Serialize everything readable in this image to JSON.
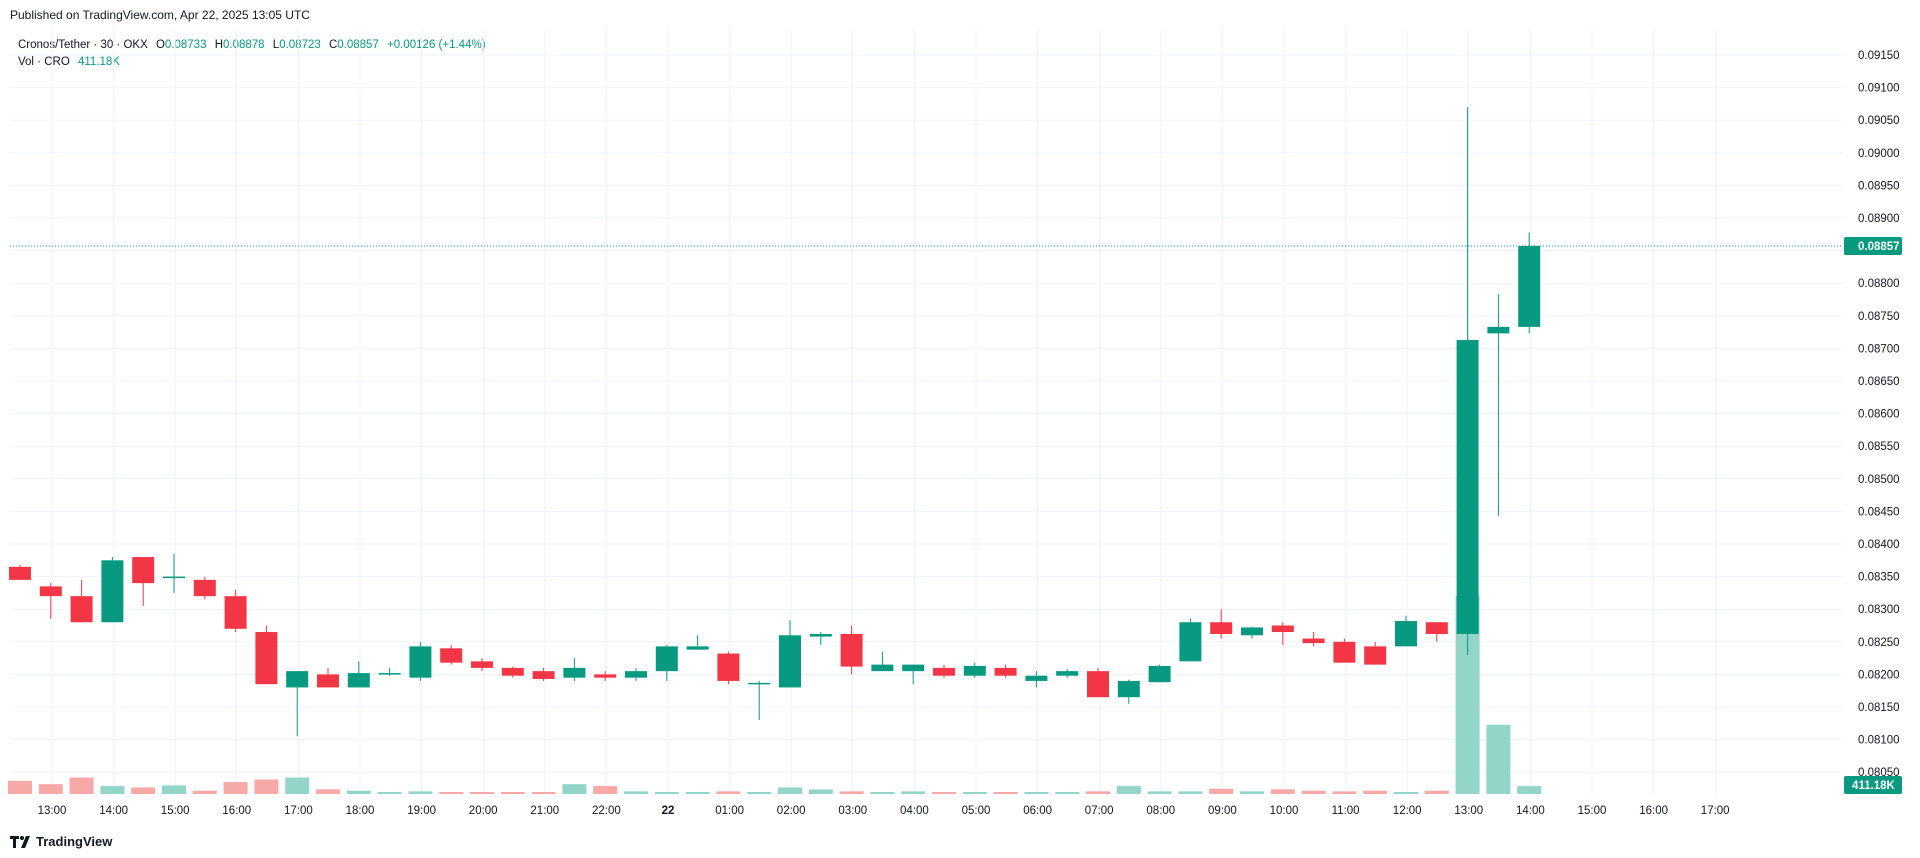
{
  "published": "Published on TradingView.com, Apr 22, 2025 13:05 UTC",
  "legend": {
    "symbol": "Cronos/Tether · 30 · OKX",
    "o_label": "O",
    "o": "0.08733",
    "h_label": "H",
    "h": "0.08878",
    "l_label": "L",
    "l": "0.08723",
    "c_label": "C",
    "c": "0.08857",
    "change": "+0.00126 (+1.44%)",
    "vol_label": "Vol · CRO",
    "vol": "411.18K"
  },
  "brand": "TradingView",
  "colors": {
    "up": "#089981",
    "down": "#f23645",
    "up_vol": "#93d5c9",
    "down_vol": "#f7a9a7",
    "grid": "#f0f3fa"
  },
  "chart_data": {
    "type": "candlestick",
    "symbol": "Cronos/Tether",
    "interval": "30",
    "exchange": "OKX",
    "ylim": [
      0.0802,
      0.0917
    ],
    "y_ticks": [
      "0.09150",
      "0.09100",
      "0.09050",
      "0.09000",
      "0.08950",
      "0.08900",
      "0.08850",
      "0.08800",
      "0.08750",
      "0.08700",
      "0.08650",
      "0.08600",
      "0.08550",
      "0.08500",
      "0.08450",
      "0.08400",
      "0.08350",
      "0.08300",
      "0.08250",
      "0.08200",
      "0.08150",
      "0.08100",
      "0.08050"
    ],
    "x_ticks": [
      "13:00",
      "14:00",
      "15:00",
      "16:00",
      "17:00",
      "18:00",
      "19:00",
      "20:00",
      "21:00",
      "22:00",
      "22",
      "01:00",
      "02:00",
      "03:00",
      "04:00",
      "05:00",
      "06:00",
      "07:00",
      "08:00",
      "09:00",
      "10:00",
      "11:00",
      "12:00",
      "13:00",
      "14:00",
      "15:00",
      "16:00",
      "17:00"
    ],
    "last_price": "0.08857",
    "last_volume": "411.18K",
    "candles": [
      {
        "o": 0.08365,
        "h": 0.08368,
        "l": 0.08345,
        "c": 0.08345,
        "v": 0.2
      },
      {
        "o": 0.08335,
        "h": 0.0834,
        "l": 0.08285,
        "c": 0.0832,
        "v": 0.15
      },
      {
        "o": 0.0832,
        "h": 0.08345,
        "l": 0.0828,
        "c": 0.0828,
        "v": 0.25
      },
      {
        "o": 0.0828,
        "h": 0.0838,
        "l": 0.0828,
        "c": 0.08375,
        "v": 0.12
      },
      {
        "o": 0.0838,
        "h": 0.0838,
        "l": 0.08305,
        "c": 0.0834,
        "v": 0.1
      },
      {
        "o": 0.08348,
        "h": 0.08385,
        "l": 0.08325,
        "c": 0.0835,
        "v": 0.13
      },
      {
        "o": 0.08345,
        "h": 0.0835,
        "l": 0.08315,
        "c": 0.0832,
        "v": 0.05
      },
      {
        "o": 0.0832,
        "h": 0.0833,
        "l": 0.08265,
        "c": 0.0827,
        "v": 0.18
      },
      {
        "o": 0.08265,
        "h": 0.08275,
        "l": 0.08185,
        "c": 0.08185,
        "v": 0.22
      },
      {
        "o": 0.0818,
        "h": 0.08205,
        "l": 0.08105,
        "c": 0.08205,
        "v": 0.25
      },
      {
        "o": 0.082,
        "h": 0.0821,
        "l": 0.0818,
        "c": 0.0818,
        "v": 0.07
      },
      {
        "o": 0.0818,
        "h": 0.0822,
        "l": 0.0818,
        "c": 0.08202,
        "v": 0.05
      },
      {
        "o": 0.082,
        "h": 0.0821,
        "l": 0.08198,
        "c": 0.08202,
        "v": 0.03
      },
      {
        "o": 0.08195,
        "h": 0.0825,
        "l": 0.0819,
        "c": 0.08243,
        "v": 0.04
      },
      {
        "o": 0.0824,
        "h": 0.08245,
        "l": 0.08215,
        "c": 0.08218,
        "v": 0.03
      },
      {
        "o": 0.0822,
        "h": 0.08225,
        "l": 0.08205,
        "c": 0.0821,
        "v": 0.03
      },
      {
        "o": 0.0821,
        "h": 0.08212,
        "l": 0.08195,
        "c": 0.08198,
        "v": 0.03
      },
      {
        "o": 0.08205,
        "h": 0.0821,
        "l": 0.0819,
        "c": 0.08193,
        "v": 0.03
      },
      {
        "o": 0.08195,
        "h": 0.08225,
        "l": 0.0819,
        "c": 0.0821,
        "v": 0.15
      },
      {
        "o": 0.082,
        "h": 0.08205,
        "l": 0.0819,
        "c": 0.08195,
        "v": 0.12
      },
      {
        "o": 0.08195,
        "h": 0.0821,
        "l": 0.0819,
        "c": 0.08205,
        "v": 0.04
      },
      {
        "o": 0.08205,
        "h": 0.08245,
        "l": 0.0819,
        "c": 0.08243,
        "v": 0.03
      },
      {
        "o": 0.08238,
        "h": 0.0826,
        "l": 0.08238,
        "c": 0.08243,
        "v": 0.03
      },
      {
        "o": 0.08232,
        "h": 0.08235,
        "l": 0.08185,
        "c": 0.0819,
        "v": 0.04
      },
      {
        "o": 0.08187,
        "h": 0.0819,
        "l": 0.0813,
        "c": 0.08187,
        "v": 0.03
      },
      {
        "o": 0.0818,
        "h": 0.08283,
        "l": 0.0818,
        "c": 0.0826,
        "v": 0.1
      },
      {
        "o": 0.08258,
        "h": 0.08265,
        "l": 0.08245,
        "c": 0.08262,
        "v": 0.07
      },
      {
        "o": 0.08262,
        "h": 0.08275,
        "l": 0.082,
        "c": 0.08212,
        "v": 0.04
      },
      {
        "o": 0.08205,
        "h": 0.08235,
        "l": 0.08205,
        "c": 0.08215,
        "v": 0.03
      },
      {
        "o": 0.08205,
        "h": 0.08215,
        "l": 0.08185,
        "c": 0.08215,
        "v": 0.04
      },
      {
        "o": 0.0821,
        "h": 0.08215,
        "l": 0.08195,
        "c": 0.08198,
        "v": 0.03
      },
      {
        "o": 0.08198,
        "h": 0.08218,
        "l": 0.08195,
        "c": 0.08213,
        "v": 0.03
      },
      {
        "o": 0.0821,
        "h": 0.08215,
        "l": 0.08195,
        "c": 0.08198,
        "v": 0.03
      },
      {
        "o": 0.0819,
        "h": 0.08205,
        "l": 0.0818,
        "c": 0.08198,
        "v": 0.03
      },
      {
        "o": 0.08198,
        "h": 0.08208,
        "l": 0.08195,
        "c": 0.08205,
        "v": 0.03
      },
      {
        "o": 0.08205,
        "h": 0.0821,
        "l": 0.08165,
        "c": 0.08165,
        "v": 0.04
      },
      {
        "o": 0.08165,
        "h": 0.08192,
        "l": 0.08155,
        "c": 0.0819,
        "v": 0.12
      },
      {
        "o": 0.08188,
        "h": 0.08215,
        "l": 0.08188,
        "c": 0.08213,
        "v": 0.04
      },
      {
        "o": 0.0822,
        "h": 0.08285,
        "l": 0.0822,
        "c": 0.0828,
        "v": 0.04
      },
      {
        "o": 0.0828,
        "h": 0.083,
        "l": 0.08255,
        "c": 0.08262,
        "v": 0.08
      },
      {
        "o": 0.0826,
        "h": 0.08273,
        "l": 0.08255,
        "c": 0.08272,
        "v": 0.04
      },
      {
        "o": 0.08275,
        "h": 0.0828,
        "l": 0.08245,
        "c": 0.08265,
        "v": 0.07
      },
      {
        "o": 0.08255,
        "h": 0.08265,
        "l": 0.08243,
        "c": 0.08248,
        "v": 0.05
      },
      {
        "o": 0.0825,
        "h": 0.08255,
        "l": 0.08218,
        "c": 0.08218,
        "v": 0.04
      },
      {
        "o": 0.08243,
        "h": 0.0825,
        "l": 0.08215,
        "c": 0.08215,
        "v": 0.05
      },
      {
        "o": 0.08243,
        "h": 0.0829,
        "l": 0.08243,
        "c": 0.08282,
        "v": 0.03
      },
      {
        "o": 0.0828,
        "h": 0.0828,
        "l": 0.0825,
        "c": 0.08262,
        "v": 0.05
      },
      {
        "o": 0.08262,
        "h": 0.0907,
        "l": 0.0823,
        "c": 0.08713,
        "v": 3.0
      },
      {
        "o": 0.08723,
        "h": 0.08783,
        "l": 0.08443,
        "c": 0.08733,
        "v": 1.05
      },
      {
        "o": 0.08733,
        "h": 0.08878,
        "l": 0.08723,
        "c": 0.08857,
        "v": 0.12
      }
    ]
  }
}
